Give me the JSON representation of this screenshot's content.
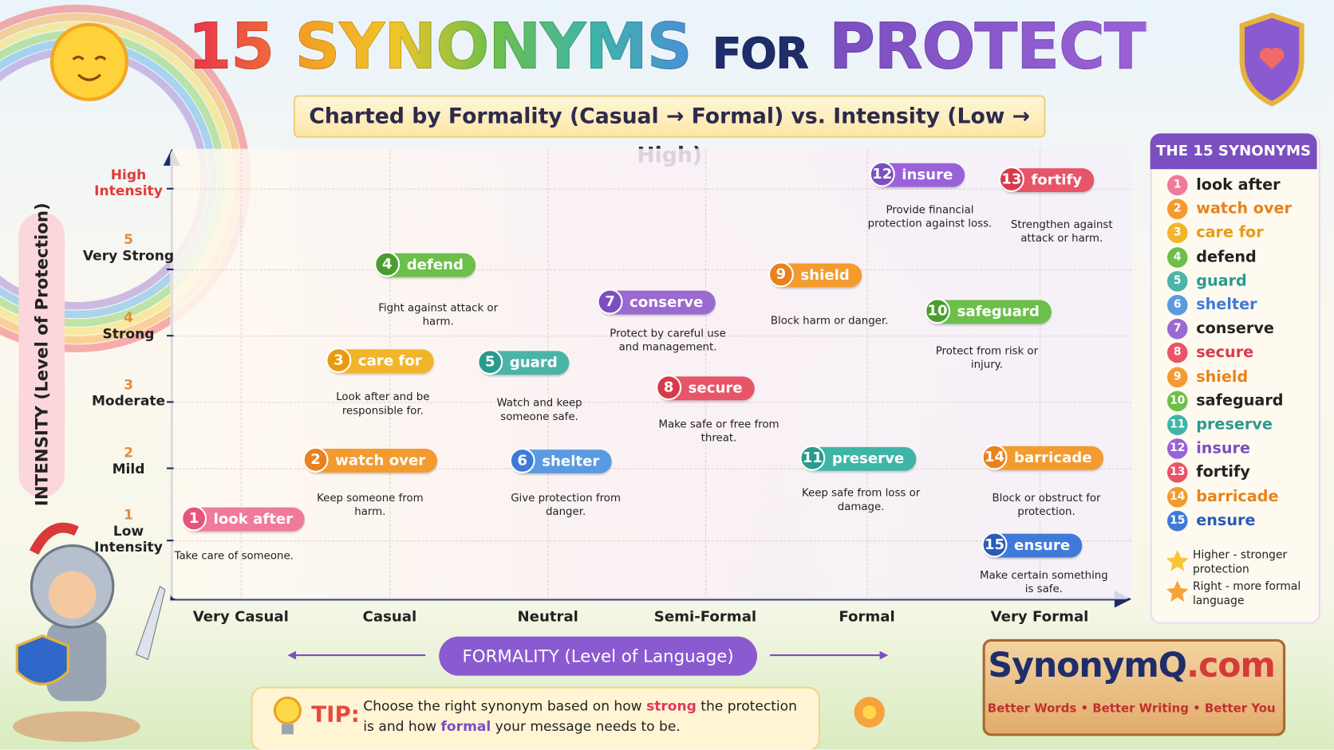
{
  "header": {
    "title": [
      "15",
      "SYNONYMS",
      "FOR",
      "PROTECT"
    ],
    "subtitle": "Charted by Formality (Casual → Formal) vs. Intensity (Low → High)"
  },
  "y_axis": {
    "title": "INTENSITY (Level of Protection)",
    "levels": [
      {
        "label": "High Intensity"
      },
      {
        "number": "5",
        "label": "Very Strong"
      },
      {
        "number": "4",
        "label": "Strong"
      },
      {
        "number": "3",
        "label": "Moderate"
      },
      {
        "number": "2",
        "label": "Mild"
      },
      {
        "number": "1",
        "label": "Low Intensity"
      }
    ]
  },
  "x_axis": {
    "title": "FORMALITY (Level of Language)",
    "levels": [
      "Very Casual",
      "Casual",
      "Neutral",
      "Semi-Formal",
      "Formal",
      "Very Formal"
    ]
  },
  "synonyms": [
    {
      "number": "1",
      "word": "look after",
      "description": "Take care of someone."
    },
    {
      "number": "2",
      "word": "watch over",
      "description": "Keep someone from harm."
    },
    {
      "number": "3",
      "word": "care for",
      "description": "Look after and be responsible for."
    },
    {
      "number": "4",
      "word": "defend",
      "description": "Fight against attack or harm."
    },
    {
      "number": "5",
      "word": "guard",
      "description": "Watch and keep someone safe."
    },
    {
      "number": "6",
      "word": "shelter",
      "description": "Give protection from danger."
    },
    {
      "number": "7",
      "word": "conserve",
      "description": "Protect by careful use and management."
    },
    {
      "number": "8",
      "word": "secure",
      "description": "Make safe or free from threat."
    },
    {
      "number": "9",
      "word": "shield",
      "description": "Block harm or danger."
    },
    {
      "number": "10",
      "word": "safeguard",
      "description": "Protect from risk or injury."
    },
    {
      "number": "11",
      "word": "preserve",
      "description": "Keep safe from loss or damage."
    },
    {
      "number": "12",
      "word": "insure",
      "description": "Provide financial protection against loss."
    },
    {
      "number": "13",
      "word": "fortify",
      "description": "Strengthen against attack or harm."
    },
    {
      "number": "14",
      "word": "barricade",
      "description": "Block or obstruct for protection."
    },
    {
      "number": "15",
      "word": "ensure",
      "description": "Make certain something is safe."
    }
  ],
  "legend": {
    "title": "THE 15 SYNONYMS",
    "notes": [
      "Higher - stronger protection",
      "Right - more formal language"
    ]
  },
  "tip": {
    "label": "TIP:",
    "text": [
      "Choose the right synonym based on how ",
      "strong",
      " the protection is and how ",
      "formal",
      " your message needs to be."
    ]
  },
  "brand": {
    "name": [
      "SynonymQ",
      ".com"
    ],
    "tagline": "Better Words • Better Writing • Better You"
  }
}
